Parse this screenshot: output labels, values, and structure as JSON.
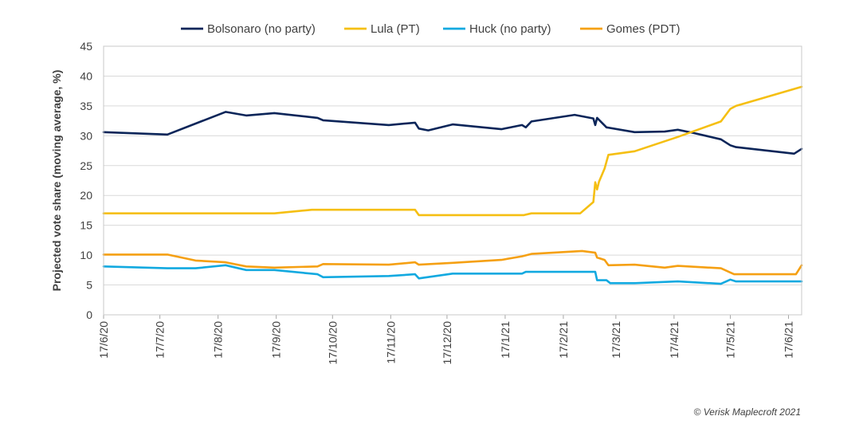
{
  "chart_data": {
    "type": "line",
    "title": "",
    "xlabel": "",
    "ylabel": "Projected vote share (moving average, %)",
    "ylim": [
      0,
      45
    ],
    "yticks": [
      0,
      5,
      10,
      15,
      20,
      25,
      30,
      35,
      40,
      45
    ],
    "grid": "horizontal",
    "legend_position": "top",
    "x_domain": [
      "2020-06-17",
      "2021-06-24"
    ],
    "x_tick_dates": [
      "2020-06-17",
      "2020-07-17",
      "2020-08-17",
      "2020-09-17",
      "2020-10-17",
      "2020-11-17",
      "2020-12-17",
      "2021-01-17",
      "2021-02-17",
      "2021-03-17",
      "2021-04-17",
      "2021-05-17",
      "2021-06-17"
    ],
    "x_tick_labels": [
      "17/6/20",
      "17/7/20",
      "17/8/20",
      "17/9/20",
      "17/10/20",
      "17/11/20",
      "17/12/20",
      "17/1/21",
      "17/2/21",
      "17/3/21",
      "17/4/21",
      "17/5/21",
      "17/6/21"
    ],
    "series": [
      {
        "name": "Bolsonaro (no party)",
        "color": "#0b2559",
        "points": [
          [
            "2020-06-17",
            30.6
          ],
          [
            "2020-07-21",
            30.2
          ],
          [
            "2020-08-21",
            34.0
          ],
          [
            "2020-09-01",
            33.4
          ],
          [
            "2020-09-16",
            33.8
          ],
          [
            "2020-10-09",
            33.0
          ],
          [
            "2020-10-12",
            32.6
          ],
          [
            "2020-11-16",
            31.8
          ],
          [
            "2020-11-30",
            32.2
          ],
          [
            "2020-12-02",
            31.2
          ],
          [
            "2020-12-07",
            30.9
          ],
          [
            "2020-12-20",
            31.9
          ],
          [
            "2021-01-15",
            31.1
          ],
          [
            "2021-01-26",
            31.8
          ],
          [
            "2021-01-28",
            31.4
          ],
          [
            "2021-01-31",
            32.4
          ],
          [
            "2021-02-23",
            33.5
          ],
          [
            "2021-03-05",
            32.9
          ],
          [
            "2021-03-06",
            31.8
          ],
          [
            "2021-03-07",
            33.0
          ],
          [
            "2021-03-12",
            31.4
          ],
          [
            "2021-03-27",
            30.6
          ],
          [
            "2021-04-12",
            30.7
          ],
          [
            "2021-04-19",
            31.0
          ],
          [
            "2021-04-27",
            30.5
          ],
          [
            "2021-05-12",
            29.4
          ],
          [
            "2021-05-17",
            28.4
          ],
          [
            "2021-05-20",
            28.1
          ],
          [
            "2021-06-20",
            27.0
          ],
          [
            "2021-06-24",
            27.8
          ]
        ]
      },
      {
        "name": "Lula (PT)",
        "color": "#f5bf12",
        "points": [
          [
            "2020-06-17",
            17.0
          ],
          [
            "2020-09-16",
            17.0
          ],
          [
            "2020-10-06",
            17.6
          ],
          [
            "2020-11-30",
            17.6
          ],
          [
            "2020-12-02",
            16.7
          ],
          [
            "2021-01-27",
            16.7
          ],
          [
            "2021-01-31",
            17.0
          ],
          [
            "2021-02-26",
            17.0
          ],
          [
            "2021-03-05",
            18.9
          ],
          [
            "2021-03-06",
            22.2
          ],
          [
            "2021-03-07",
            21.0
          ],
          [
            "2021-03-08",
            22.3
          ],
          [
            "2021-03-11",
            24.5
          ],
          [
            "2021-03-13",
            26.8
          ],
          [
            "2021-03-27",
            27.4
          ],
          [
            "2021-04-19",
            29.8
          ],
          [
            "2021-05-12",
            32.4
          ],
          [
            "2021-05-17",
            34.5
          ],
          [
            "2021-05-20",
            35.0
          ],
          [
            "2021-06-24",
            38.2
          ]
        ]
      },
      {
        "name": "Huck (no party)",
        "color": "#12a9e0",
        "points": [
          [
            "2020-06-17",
            8.1
          ],
          [
            "2020-07-21",
            7.8
          ],
          [
            "2020-08-05",
            7.8
          ],
          [
            "2020-08-21",
            8.3
          ],
          [
            "2020-09-01",
            7.5
          ],
          [
            "2020-09-16",
            7.5
          ],
          [
            "2020-10-09",
            6.8
          ],
          [
            "2020-10-12",
            6.3
          ],
          [
            "2020-11-16",
            6.5
          ],
          [
            "2020-11-30",
            6.8
          ],
          [
            "2020-12-02",
            6.1
          ],
          [
            "2020-12-20",
            6.9
          ],
          [
            "2021-01-26",
            6.9
          ],
          [
            "2021-01-28",
            7.2
          ],
          [
            "2021-03-06",
            7.2
          ],
          [
            "2021-03-07",
            5.8
          ],
          [
            "2021-03-12",
            5.8
          ],
          [
            "2021-03-14",
            5.3
          ],
          [
            "2021-03-27",
            5.3
          ],
          [
            "2021-04-19",
            5.6
          ],
          [
            "2021-05-12",
            5.2
          ],
          [
            "2021-05-17",
            5.9
          ],
          [
            "2021-05-20",
            5.6
          ],
          [
            "2021-06-24",
            5.6
          ]
        ]
      },
      {
        "name": "Gomes (PDT)",
        "color": "#f5a013",
        "points": [
          [
            "2020-06-17",
            10.1
          ],
          [
            "2020-07-21",
            10.1
          ],
          [
            "2020-08-05",
            9.1
          ],
          [
            "2020-08-21",
            8.8
          ],
          [
            "2020-09-01",
            8.1
          ],
          [
            "2020-09-16",
            7.9
          ],
          [
            "2020-10-09",
            8.1
          ],
          [
            "2020-10-12",
            8.5
          ],
          [
            "2020-11-16",
            8.4
          ],
          [
            "2020-11-30",
            8.8
          ],
          [
            "2020-12-02",
            8.4
          ],
          [
            "2020-12-20",
            8.7
          ],
          [
            "2021-01-15",
            9.2
          ],
          [
            "2021-01-26",
            9.8
          ],
          [
            "2021-01-31",
            10.2
          ],
          [
            "2021-02-27",
            10.7
          ],
          [
            "2021-03-06",
            10.4
          ],
          [
            "2021-03-07",
            9.6
          ],
          [
            "2021-03-11",
            9.2
          ],
          [
            "2021-03-13",
            8.3
          ],
          [
            "2021-03-27",
            8.4
          ],
          [
            "2021-04-12",
            7.9
          ],
          [
            "2021-04-19",
            8.2
          ],
          [
            "2021-05-12",
            7.8
          ],
          [
            "2021-05-19",
            6.8
          ],
          [
            "2021-06-21",
            6.8
          ],
          [
            "2021-06-24",
            8.3
          ]
        ]
      }
    ]
  },
  "credit": "© Verisk Maplecroft 2021"
}
